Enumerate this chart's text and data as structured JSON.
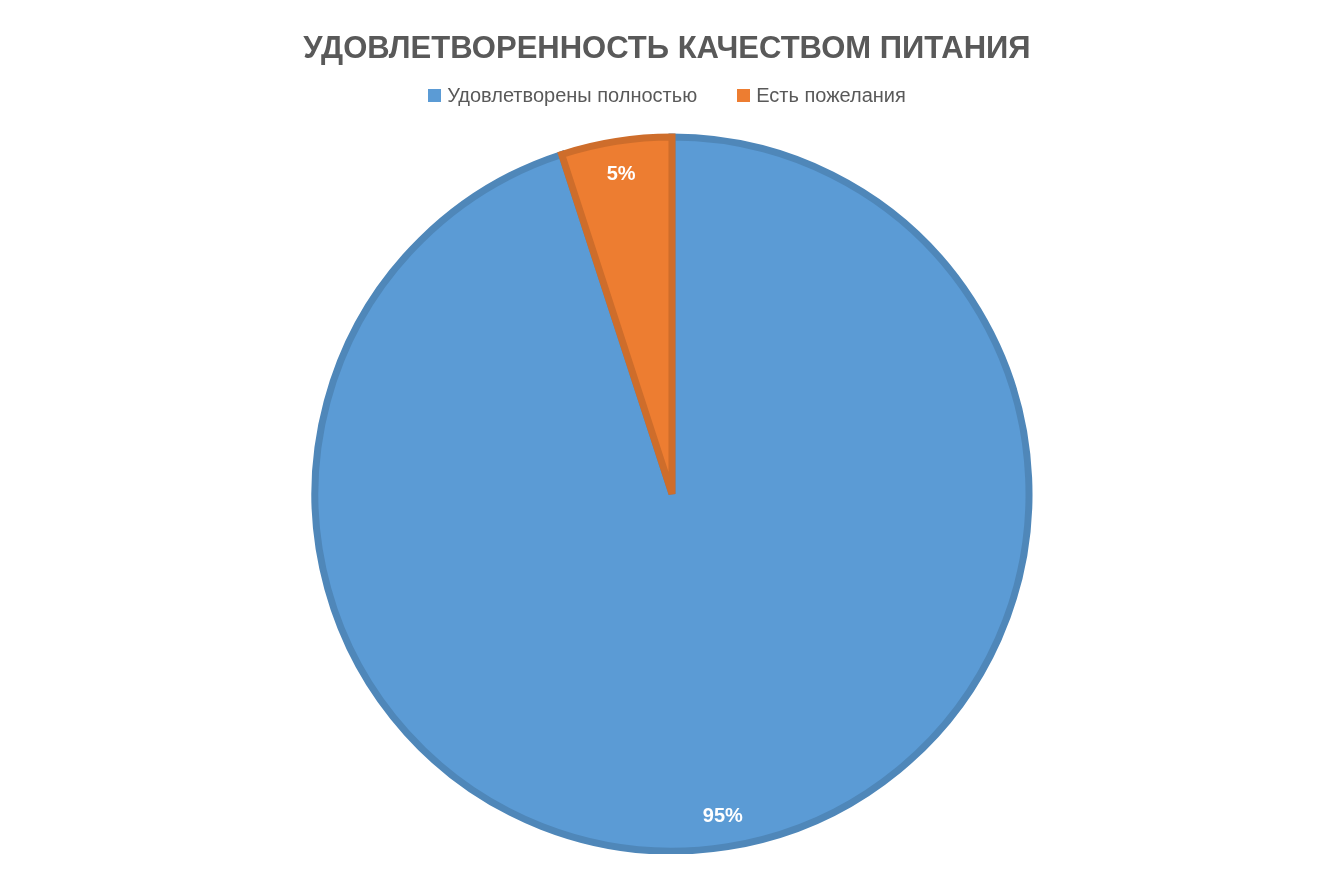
{
  "chart_data": {
    "type": "pie",
    "title": "УДОВЛЕТВОРЕННОСТЬ КАЧЕСТВОМ ПИТАНИЯ",
    "categories": [
      "Удовлетворены полностью",
      "Есть пожелания"
    ],
    "values": [
      95,
      5
    ],
    "colors": [
      "#5b9bd5",
      "#ed7d31"
    ],
    "value_labels": [
      "95%",
      "5%"
    ],
    "legend": "top"
  }
}
